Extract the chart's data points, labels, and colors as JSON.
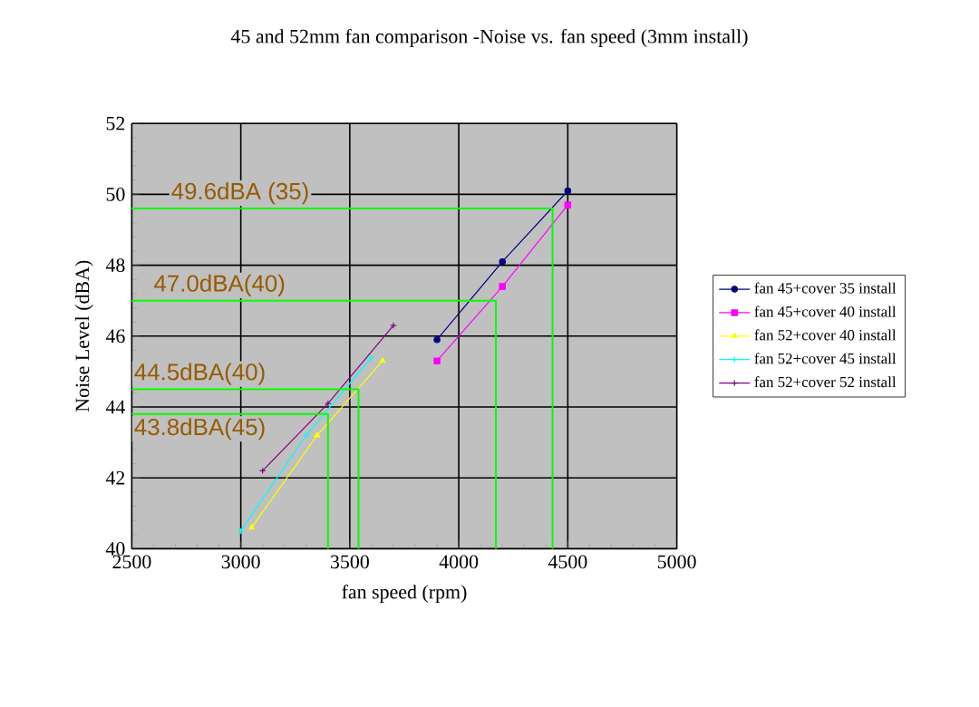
{
  "chart_data": {
    "type": "line",
    "title": "45 and 52mm fan comparison -Noise vs. fan speed (3mm install)",
    "xlabel": "fan speed (rpm)",
    "ylabel": "Noise Level (dBA)",
    "series": [
      {
        "name": "fan 45+cover 35 install",
        "color": "#000080",
        "marker": "circle",
        "x": [
          3900,
          4200,
          4500
        ],
        "values": [
          45.9,
          48.1,
          50.1
        ]
      },
      {
        "name": "fan 45+cover 40 install",
        "color": "#ff00ff",
        "marker": "square",
        "x": [
          3900,
          4200,
          4500
        ],
        "values": [
          45.3,
          47.4,
          49.7
        ]
      },
      {
        "name": "fan 52+cover 40 install",
        "color": "#ffff00",
        "marker": "triangle",
        "x": [
          3050,
          3350,
          3650
        ],
        "values": [
          40.6,
          43.2,
          45.3
        ]
      },
      {
        "name": "fan 52+cover 45 install",
        "color": "#00ffff",
        "marker": "cross",
        "x": [
          3000,
          3300,
          3600
        ],
        "values": [
          40.5,
          43.2,
          45.4
        ]
      },
      {
        "name": "fan 52+cover 52  install",
        "color": "#800080",
        "marker": "cross",
        "x": [
          3100,
          3400,
          3700
        ],
        "values": [
          42.2,
          44.1,
          46.3
        ]
      },
      {
        "color": "#00ff00",
        "marker": "none",
        "x": [
          2500,
          4430,
          4430
        ],
        "values": [
          49.6,
          49.6,
          40
        ]
      },
      {
        "color": "#00ff00",
        "marker": "none",
        "x": [
          2500,
          4170,
          4170
        ],
        "values": [
          47.0,
          47.0,
          40
        ]
      },
      {
        "color": "#00ff00",
        "marker": "none",
        "x": [
          2500,
          3540,
          3540
        ],
        "values": [
          44.5,
          44.5,
          40
        ]
      },
      {
        "color": "#00ff00",
        "marker": "none",
        "x": [
          2500,
          3400,
          3400
        ],
        "values": [
          43.8,
          43.8,
          40
        ]
      }
    ],
    "annotations": [
      {
        "text": "49.6dBA (35)",
        "x": 2670,
        "y": 49.6
      },
      {
        "text": "47.0dBA(40)",
        "x": 2590,
        "y": 47.0
      },
      {
        "text": "44.5dBA(40)",
        "x": 2500,
        "y": 44.5
      },
      {
        "text": "43.8dBA(45)",
        "x": 2500,
        "y": 43.8
      }
    ],
    "xlim": [
      2500,
      5000
    ],
    "xticks": [
      2500,
      3000,
      3500,
      4000,
      4500,
      5000
    ],
    "ylim": [
      40,
      52
    ],
    "yticks": [
      40,
      42,
      44,
      46,
      48,
      50,
      52
    ],
    "grid": true,
    "legend": "right"
  }
}
